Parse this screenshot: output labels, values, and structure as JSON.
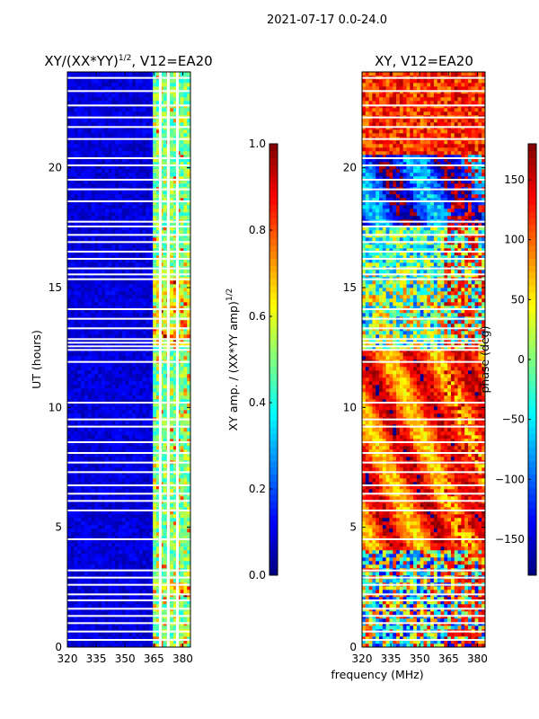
{
  "chart_data": {
    "suptitle": "2021-07-17 0.0-24.0",
    "xlabel_shared": "frequency (MHz)",
    "panels": [
      {
        "type": "heatmap",
        "title": "XY/(XX*YY)",
        "title_exponent": "1/2",
        "title_suffix": ", V12=EA20",
        "ylabel": "UT (hours)",
        "xlim": [
          320,
          384
        ],
        "ylim": [
          0,
          24
        ],
        "x_ticks": [
          320,
          335,
          350,
          365,
          380
        ],
        "y_ticks": [
          0,
          5,
          10,
          15,
          20
        ],
        "colormap": "jet",
        "colorbar": {
          "label": "XY amp. / (XX*YY amp)",
          "label_exponent": "1/2",
          "range": [
            0.0,
            1.0
          ],
          "ticks": [
            "0.0",
            "0.2",
            "0.4",
            "0.6",
            "0.8",
            "1.0"
          ],
          "tick_values": [
            0.0,
            0.2,
            0.4,
            0.6,
            0.8,
            1.0
          ]
        }
      },
      {
        "type": "heatmap",
        "title": "XY, V12=EA20",
        "xlim": [
          320,
          384
        ],
        "ylim": [
          0,
          24
        ],
        "x_ticks": [
          320,
          335,
          350,
          365,
          380
        ],
        "y_ticks": [
          0,
          5,
          10,
          15,
          20
        ],
        "colormap": "jet",
        "colorbar": {
          "label": "phase (deg)",
          "range": [
            -180,
            180
          ],
          "ticks": [
            "150",
            "100",
            "50",
            "0",
            "−50",
            "−100",
            "−150"
          ],
          "tick_values": [
            150,
            100,
            50,
            0,
            -50,
            -100,
            -150
          ]
        }
      }
    ],
    "flagged_time_rows_hours": [
      0.3,
      0.65,
      1.0,
      1.3,
      1.6,
      1.95,
      2.2,
      2.6,
      2.9,
      3.2,
      4.5,
      5.7,
      6.1,
      6.4,
      6.75,
      7.3,
      7.7,
      8.1,
      8.55,
      9.2,
      9.5,
      10.2,
      11.9,
      12.4,
      12.55,
      12.7,
      12.85,
      13.3,
      13.7,
      14.1,
      15.35,
      15.55,
      15.8,
      16.2,
      16.5,
      16.9,
      17.2,
      17.55,
      17.75,
      18.6,
      19.1,
      19.5,
      20.1,
      20.4,
      21.2,
      21.7,
      22.1,
      22.6,
      23.2,
      23.75
    ],
    "flagged_channel_columns_mhz": [
      368.3,
      372.5,
      377.2
    ]
  }
}
